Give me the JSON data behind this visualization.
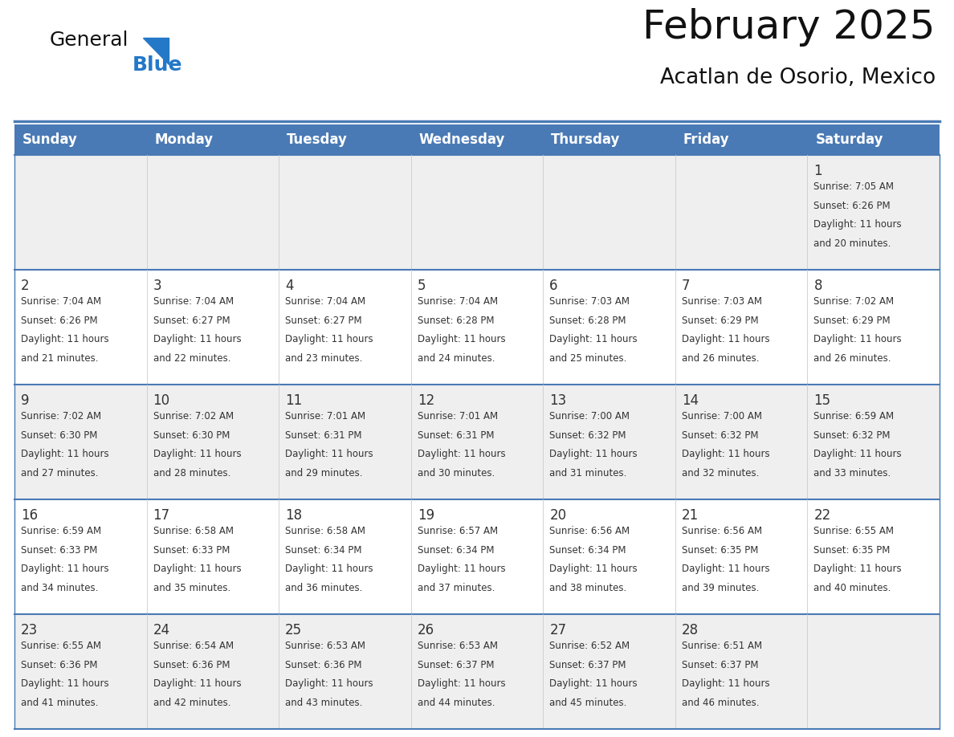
{
  "title": "February 2025",
  "subtitle": "Acatlan de Osorio, Mexico",
  "days_of_week": [
    "Sunday",
    "Monday",
    "Tuesday",
    "Wednesday",
    "Thursday",
    "Friday",
    "Saturday"
  ],
  "header_bg": "#4a7ab5",
  "header_text": "#FFFFFF",
  "cell_bg_odd": "#efefef",
  "cell_bg_even": "#FFFFFF",
  "separator_color": "#4a7ab5",
  "day_num_color": "#333333",
  "info_text_color": "#333333",
  "title_color": "#111111",
  "subtitle_color": "#111111",
  "logo_general_color": "#111111",
  "logo_blue_color": "#2478C8",
  "calendar_data": [
    [
      null,
      null,
      null,
      null,
      null,
      null,
      {
        "day": 1,
        "sunrise": "7:05 AM",
        "sunset": "6:26 PM",
        "daylight": "11 hours and 20 minutes."
      }
    ],
    [
      {
        "day": 2,
        "sunrise": "7:04 AM",
        "sunset": "6:26 PM",
        "daylight": "11 hours and 21 minutes."
      },
      {
        "day": 3,
        "sunrise": "7:04 AM",
        "sunset": "6:27 PM",
        "daylight": "11 hours and 22 minutes."
      },
      {
        "day": 4,
        "sunrise": "7:04 AM",
        "sunset": "6:27 PM",
        "daylight": "11 hours and 23 minutes."
      },
      {
        "day": 5,
        "sunrise": "7:04 AM",
        "sunset": "6:28 PM",
        "daylight": "11 hours and 24 minutes."
      },
      {
        "day": 6,
        "sunrise": "7:03 AM",
        "sunset": "6:28 PM",
        "daylight": "11 hours and 25 minutes."
      },
      {
        "day": 7,
        "sunrise": "7:03 AM",
        "sunset": "6:29 PM",
        "daylight": "11 hours and 26 minutes."
      },
      {
        "day": 8,
        "sunrise": "7:02 AM",
        "sunset": "6:29 PM",
        "daylight": "11 hours and 26 minutes."
      }
    ],
    [
      {
        "day": 9,
        "sunrise": "7:02 AM",
        "sunset": "6:30 PM",
        "daylight": "11 hours and 27 minutes."
      },
      {
        "day": 10,
        "sunrise": "7:02 AM",
        "sunset": "6:30 PM",
        "daylight": "11 hours and 28 minutes."
      },
      {
        "day": 11,
        "sunrise": "7:01 AM",
        "sunset": "6:31 PM",
        "daylight": "11 hours and 29 minutes."
      },
      {
        "day": 12,
        "sunrise": "7:01 AM",
        "sunset": "6:31 PM",
        "daylight": "11 hours and 30 minutes."
      },
      {
        "day": 13,
        "sunrise": "7:00 AM",
        "sunset": "6:32 PM",
        "daylight": "11 hours and 31 minutes."
      },
      {
        "day": 14,
        "sunrise": "7:00 AM",
        "sunset": "6:32 PM",
        "daylight": "11 hours and 32 minutes."
      },
      {
        "day": 15,
        "sunrise": "6:59 AM",
        "sunset": "6:32 PM",
        "daylight": "11 hours and 33 minutes."
      }
    ],
    [
      {
        "day": 16,
        "sunrise": "6:59 AM",
        "sunset": "6:33 PM",
        "daylight": "11 hours and 34 minutes."
      },
      {
        "day": 17,
        "sunrise": "6:58 AM",
        "sunset": "6:33 PM",
        "daylight": "11 hours and 35 minutes."
      },
      {
        "day": 18,
        "sunrise": "6:58 AM",
        "sunset": "6:34 PM",
        "daylight": "11 hours and 36 minutes."
      },
      {
        "day": 19,
        "sunrise": "6:57 AM",
        "sunset": "6:34 PM",
        "daylight": "11 hours and 37 minutes."
      },
      {
        "day": 20,
        "sunrise": "6:56 AM",
        "sunset": "6:34 PM",
        "daylight": "11 hours and 38 minutes."
      },
      {
        "day": 21,
        "sunrise": "6:56 AM",
        "sunset": "6:35 PM",
        "daylight": "11 hours and 39 minutes."
      },
      {
        "day": 22,
        "sunrise": "6:55 AM",
        "sunset": "6:35 PM",
        "daylight": "11 hours and 40 minutes."
      }
    ],
    [
      {
        "day": 23,
        "sunrise": "6:55 AM",
        "sunset": "6:36 PM",
        "daylight": "11 hours and 41 minutes."
      },
      {
        "day": 24,
        "sunrise": "6:54 AM",
        "sunset": "6:36 PM",
        "daylight": "11 hours and 42 minutes."
      },
      {
        "day": 25,
        "sunrise": "6:53 AM",
        "sunset": "6:36 PM",
        "daylight": "11 hours and 43 minutes."
      },
      {
        "day": 26,
        "sunrise": "6:53 AM",
        "sunset": "6:37 PM",
        "daylight": "11 hours and 44 minutes."
      },
      {
        "day": 27,
        "sunrise": "6:52 AM",
        "sunset": "6:37 PM",
        "daylight": "11 hours and 45 minutes."
      },
      {
        "day": 28,
        "sunrise": "6:51 AM",
        "sunset": "6:37 PM",
        "daylight": "11 hours and 46 minutes."
      },
      null
    ]
  ]
}
